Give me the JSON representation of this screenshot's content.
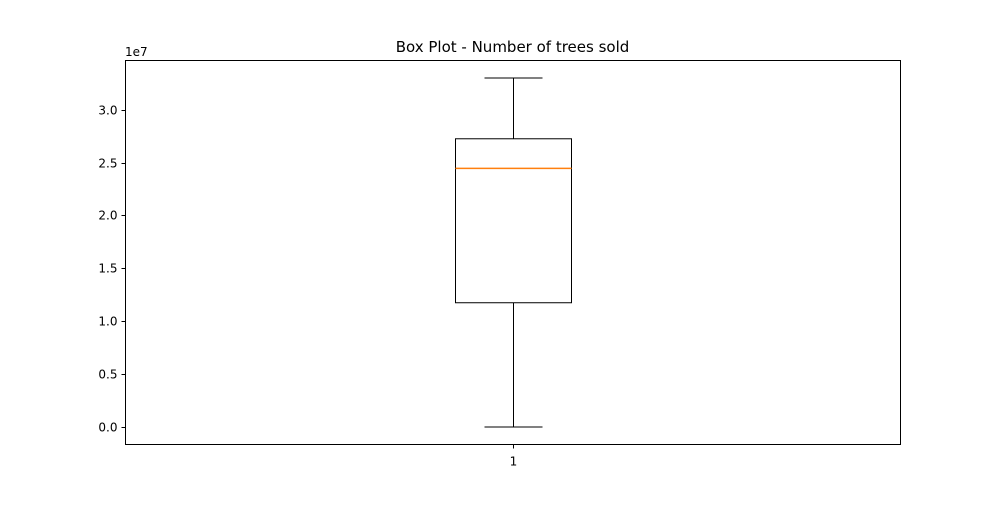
{
  "chart_data": {
    "type": "box",
    "title": "Box Plot - Number of trees sold",
    "xlabel": "",
    "ylabel": "",
    "y_offset_text": "1e7",
    "x_tick_labels": [
      "1"
    ],
    "y_ticks": [
      0.0,
      0.5,
      1.0,
      1.5,
      2.0,
      2.5,
      3.0
    ],
    "y_tick_labels": [
      "0.0",
      "0.5",
      "1.0",
      "1.5",
      "2.0",
      "2.5",
      "3.0"
    ],
    "ylim": [
      -1650000,
      34650000
    ],
    "grid": false,
    "boxes": [
      {
        "category": "1",
        "whisker_low": 0,
        "q1": 11750000,
        "median": 24450000,
        "q3": 27250000,
        "whisker_high": 33000000
      }
    ],
    "colors": {
      "box": "#000000",
      "median": "#ff7f0e"
    }
  }
}
